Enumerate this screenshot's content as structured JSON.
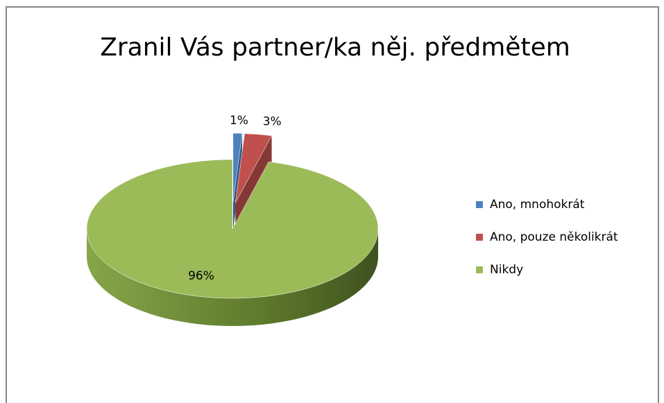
{
  "chart_data": {
    "type": "pie",
    "title": "Zranil Vás partner/ka něj. předmětem",
    "categories": [
      "Ano, mnohokrát",
      "Ano, pouze několikrát",
      "Nikdy"
    ],
    "values": [
      1,
      3,
      96
    ],
    "value_labels": [
      "1%",
      "3%",
      "96%"
    ],
    "colors": [
      "#4f81bd",
      "#c0504d",
      "#9bbb59"
    ],
    "exploded": [
      true,
      true,
      false
    ],
    "three_d": true,
    "legend": "right"
  }
}
